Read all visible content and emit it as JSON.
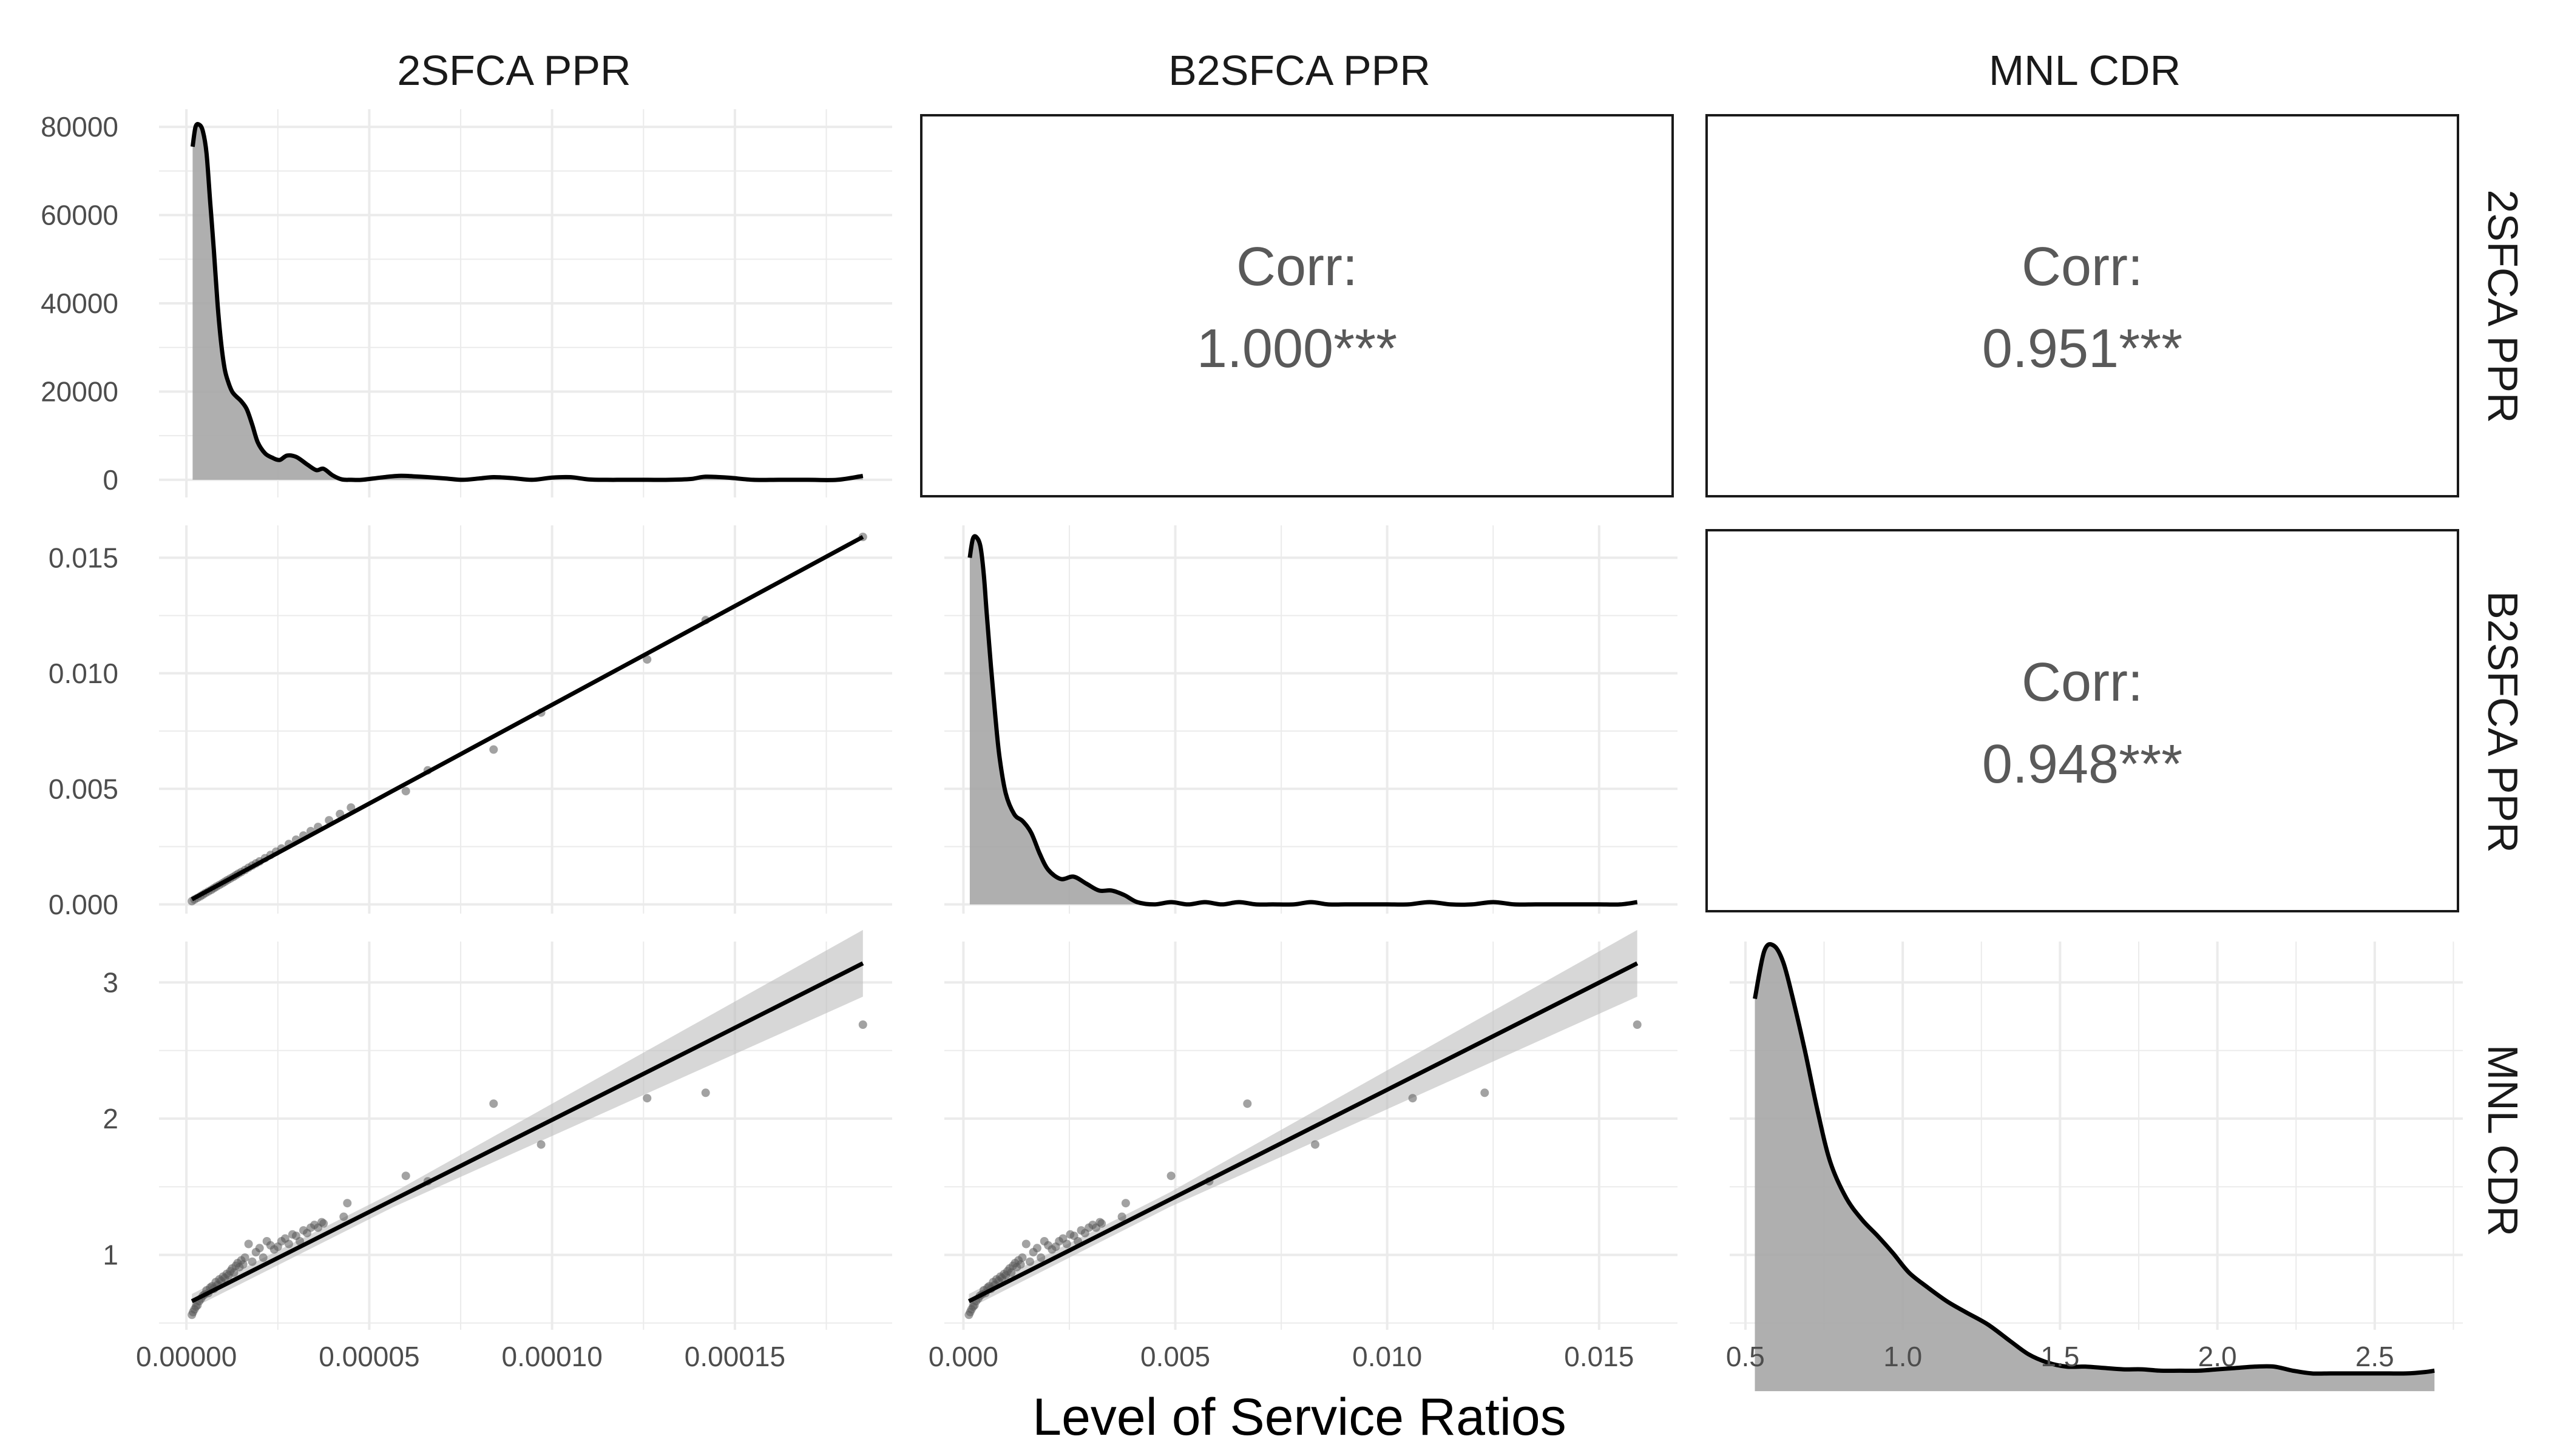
{
  "chart_data": {
    "type": "scatter-matrix",
    "title": "",
    "xlabel": "Level of Service Ratios",
    "variables": [
      "2SFCA PPR",
      "B2SFCA PPR",
      "MNL CDR"
    ],
    "axes": [
      {
        "name": "2SFCA PPR",
        "range": [
          -7.5e-06,
          0.000193
        ],
        "ticks": [
          0,
          5e-05,
          0.0001,
          0.00015
        ],
        "tick_labels": [
          "0.00000",
          "0.00005",
          "0.00010",
          "0.00015"
        ]
      },
      {
        "name": "B2SFCA PPR",
        "range": [
          -0.00045,
          0.01685
        ],
        "ticks": [
          0,
          0.005,
          0.01,
          0.015
        ],
        "tick_labels": [
          "0.000",
          "0.005",
          "0.010",
          "0.015"
        ]
      },
      {
        "name": "MNL CDR",
        "range": [
          0.45,
          2.78
        ],
        "ticks": [
          0.5,
          1.0,
          1.5,
          2.0,
          2.5
        ],
        "tick_labels": [
          "0.5",
          "1.0",
          "1.5",
          "2.0",
          "2.5"
        ]
      }
    ],
    "density_axis": {
      "range": [
        -4000,
        84000
      ],
      "ticks": [
        0,
        20000,
        40000,
        60000,
        80000
      ],
      "tick_labels": [
        "0",
        "20000",
        "40000",
        "60000",
        "80000"
      ]
    },
    "row_y_axes": [
      {
        "name": "B2SFCA PPR",
        "range": [
          -0.0004,
          0.0164
        ],
        "ticks": [
          0,
          0.005,
          0.01,
          0.015
        ],
        "tick_labels": [
          "0.000",
          "0.005",
          "0.010",
          "0.015"
        ]
      },
      {
        "name": "MNL CDR",
        "range": [
          0.45,
          3.3
        ],
        "ticks": [
          1,
          2,
          3
        ],
        "tick_labels": [
          "1",
          "2",
          "3"
        ]
      }
    ],
    "correlations": [
      {
        "row": "2SFCA PPR",
        "col": "B2SFCA PPR",
        "label": "Corr:",
        "value": "1.000***"
      },
      {
        "row": "2SFCA PPR",
        "col": "MNL CDR",
        "label": "Corr:",
        "value": "0.951***"
      },
      {
        "row": "B2SFCA PPR",
        "col": "MNL CDR",
        "label": "Corr:",
        "value": "0.948***"
      }
    ],
    "densities": [
      {
        "variable": "2SFCA PPR",
        "x": [
          1.7e-06,
          2.5e-06,
          3.5e-06,
          4.5e-06,
          5.5e-06,
          6.5e-06,
          7.5e-06,
          8.5e-06,
          9.5e-06,
          1.05e-05,
          1.15e-05,
          1.25e-05,
          1.35e-05,
          1.5e-05,
          1.65e-05,
          1.8e-05,
          1.95e-05,
          2.15e-05,
          2.35e-05,
          2.55e-05,
          2.75e-05,
          3e-05,
          3.3e-05,
          3.55e-05,
          3.75e-05,
          4e-05,
          4.25e-05,
          4.5e-05,
          4.8e-05,
          5.3e-05,
          5.8e-05,
          6.2e-05,
          6.6e-05,
          7.1e-05,
          7.55e-05,
          8e-05,
          8.4e-05,
          8.9e-05,
          9.45e-05,
          0.0001,
          0.000105,
          0.00011,
          0.000115,
          0.00012,
          0.000126,
          0.000132,
          0.000138,
          0.000142,
          0.000148,
          0.000155,
          0.000162,
          0.00017,
          0.000178,
          0.000185
        ],
        "y": [
          75500,
          80000,
          80500,
          79000,
          74000,
          63000,
          52000,
          40000,
          31000,
          25000,
          22000,
          20000,
          19000,
          17800,
          16000,
          12500,
          8500,
          6000,
          5000,
          4500,
          5500,
          5200,
          3500,
          2200,
          2500,
          1000,
          100,
          0,
          0,
          500,
          900,
          800,
          600,
          300,
          0,
          300,
          600,
          400,
          0,
          500,
          600,
          100,
          0,
          0,
          0,
          0,
          200,
          700,
          500,
          0,
          0,
          0,
          0,
          900
        ]
      },
      {
        "variable": "B2SFCA PPR",
        "x": [
          0.00015,
          0.00022,
          0.0003,
          0.0004,
          0.00048,
          0.00055,
          0.00065,
          0.00075,
          0.00085,
          0.001,
          0.0012,
          0.0014,
          0.0016,
          0.0018,
          0.002,
          0.0023,
          0.0026,
          0.0029,
          0.0032,
          0.0035,
          0.0038,
          0.0041,
          0.0045,
          0.0049,
          0.0053,
          0.0057,
          0.0061,
          0.0065,
          0.0069,
          0.0073,
          0.0078,
          0.0082,
          0.0086,
          0.009,
          0.0095,
          0.01,
          0.0105,
          0.011,
          0.0115,
          0.012,
          0.0125,
          0.013,
          0.0135,
          0.014,
          0.0145,
          0.015,
          0.0155,
          0.0159
        ],
        "y": [
          0.015,
          0.0158,
          0.0159,
          0.0155,
          0.0143,
          0.0126,
          0.0103,
          0.0082,
          0.0064,
          0.0048,
          0.0039,
          0.0036,
          0.0031,
          0.0022,
          0.0015,
          0.0011,
          0.0012,
          0.0009,
          0.0006,
          0.0006,
          0.0004,
          0.0001,
          0.0,
          0.0001,
          0.0,
          0.0001,
          0.0,
          0.0001,
          0.0,
          0.0,
          0.0,
          0.0001,
          0.0,
          0.0,
          0.0,
          0.0,
          0.0,
          0.0001,
          0.0,
          0.0,
          0.0001,
          0.0,
          0.0,
          0.0,
          0.0,
          0.0,
          0.0,
          0.0001
        ]
      },
      {
        "variable": "MNL CDR",
        "x": [
          0.53,
          0.56,
          0.59,
          0.62,
          0.65,
          0.69,
          0.73,
          0.77,
          0.82,
          0.87,
          0.92,
          0.97,
          1.02,
          1.08,
          1.14,
          1.2,
          1.27,
          1.34,
          1.4,
          1.46,
          1.52,
          1.58,
          1.64,
          1.7,
          1.76,
          1.82,
          1.88,
          1.94,
          2.0,
          2.06,
          2.12,
          2.18,
          2.24,
          2.3,
          2.36,
          2.42,
          2.48,
          2.54,
          2.6,
          2.66,
          2.69
        ],
        "y": [
          2.88,
          3.23,
          3.27,
          3.15,
          2.89,
          2.49,
          2.05,
          1.68,
          1.42,
          1.26,
          1.14,
          1.01,
          0.87,
          0.76,
          0.66,
          0.58,
          0.49,
          0.37,
          0.27,
          0.21,
          0.18,
          0.18,
          0.17,
          0.16,
          0.16,
          0.15,
          0.15,
          0.15,
          0.16,
          0.17,
          0.18,
          0.18,
          0.15,
          0.13,
          0.13,
          0.13,
          0.13,
          0.13,
          0.13,
          0.14,
          0.15
        ]
      }
    ],
    "scatters": [
      {
        "x_var": "2SFCA PPR",
        "y_var": "B2SFCA PPR",
        "x": [
          1.5e-06,
          2.2e-06,
          3e-06,
          3.8e-06,
          4.5e-06,
          5.2e-06,
          6e-06,
          6.8e-06,
          7.5e-06,
          8.2e-06,
          9e-06,
          9.8e-06,
          1.05e-05,
          1.12e-05,
          1.2e-05,
          1.28e-05,
          1.35e-05,
          1.42e-05,
          1.5e-05,
          1.6e-05,
          1.7e-05,
          1.8e-05,
          1.9e-05,
          2e-05,
          2.15e-05,
          2.3e-05,
          2.45e-05,
          2.6e-05,
          2.8e-05,
          3e-05,
          3.2e-05,
          3.4e-05,
          3.6e-05,
          3.9e-05,
          4.2e-05,
          4.5e-05,
          6e-05,
          6.6e-05,
          8.4e-05,
          9.7e-05,
          0.000126,
          0.000142,
          0.000185
        ],
        "y": [
          0.00014,
          0.00021,
          0.00028,
          0.00035,
          0.00042,
          0.00049,
          0.00056,
          0.00063,
          0.0007,
          0.00077,
          0.00084,
          0.00091,
          0.00098,
          0.00105,
          0.00112,
          0.00119,
          0.00126,
          0.00133,
          0.0014,
          0.00149,
          0.00159,
          0.00168,
          0.00177,
          0.00186,
          0.002,
          0.00214,
          0.00228,
          0.00242,
          0.00261,
          0.0028,
          0.00298,
          0.00317,
          0.00335,
          0.00364,
          0.00391,
          0.00419,
          0.0049,
          0.0058,
          0.0067,
          0.0083,
          0.0106,
          0.0123,
          0.0159
        ],
        "fit": {
          "x": [
            1.5e-06,
            0.000185
          ],
          "y": [
            0.00022,
            0.0159
          ]
        }
      },
      {
        "x_var": "2SFCA PPR",
        "y_var": "MNL CDR",
        "x": [
          1.5e-06,
          1.8e-06,
          2.2e-06,
          2.6e-06,
          3e-06,
          3.5e-06,
          4e-06,
          4.5e-06,
          5e-06,
          5.5e-06,
          6e-06,
          6.5e-06,
          7e-06,
          7.5e-06,
          8e-06,
          8.5e-06,
          9e-06,
          9.5e-06,
          1e-05,
          1.05e-05,
          1.1e-05,
          1.15e-05,
          1.2e-05,
          1.25e-05,
          1.3e-05,
          1.35e-05,
          1.4e-05,
          1.45e-05,
          1.5e-05,
          1.55e-05,
          1.6e-05,
          1.7e-05,
          1.8e-05,
          1.9e-05,
          2e-05,
          2.1e-05,
          2.2e-05,
          2.3e-05,
          2.4e-05,
          2.5e-05,
          2.6e-05,
          2.7e-05,
          2.8e-05,
          2.9e-05,
          3e-05,
          3.1e-05,
          3.2e-05,
          3.3e-05,
          3.4e-05,
          3.5e-05,
          3.6e-05,
          3.7e-05,
          3.75e-05,
          4.3e-05,
          4.4e-05,
          6e-05,
          6.6e-05,
          8.4e-05,
          9.7e-05,
          0.000126,
          0.000142,
          0.000185
        ],
        "y": [
          0.56,
          0.58,
          0.6,
          0.62,
          0.63,
          0.66,
          0.68,
          0.7,
          0.71,
          0.74,
          0.72,
          0.76,
          0.77,
          0.75,
          0.8,
          0.78,
          0.82,
          0.81,
          0.84,
          0.83,
          0.86,
          0.85,
          0.88,
          0.9,
          0.87,
          0.92,
          0.94,
          0.91,
          0.96,
          0.93,
          0.98,
          1.08,
          0.95,
          1.02,
          1.05,
          0.98,
          1.1,
          1.07,
          1.04,
          1.06,
          1.1,
          1.12,
          1.08,
          1.15,
          1.14,
          1.1,
          1.18,
          1.16,
          1.2,
          1.22,
          1.2,
          1.24,
          1.23,
          1.28,
          1.38,
          1.58,
          1.54,
          2.11,
          1.81,
          2.15,
          2.19,
          2.69
        ],
        "fit": {
          "x": [
            1.5e-06,
            0.000185
          ],
          "y": [
            0.66,
            3.14
          ]
        }
      },
      {
        "x_var": "B2SFCA PPR",
        "y_var": "MNL CDR",
        "x": [
          0.00013,
          0.00016,
          0.00019,
          0.00023,
          0.00026,
          0.0003,
          0.00035,
          0.00039,
          0.00044,
          0.00048,
          0.00052,
          0.00057,
          0.00061,
          0.00065,
          0.0007,
          0.00074,
          0.00078,
          0.00083,
          0.00087,
          0.00091,
          0.00096,
          0.001,
          0.00104,
          0.00109,
          0.00113,
          0.00117,
          0.00122,
          0.00126,
          0.0013,
          0.00135,
          0.00139,
          0.00148,
          0.00157,
          0.00165,
          0.00174,
          0.00183,
          0.00191,
          0.002,
          0.00209,
          0.00218,
          0.00226,
          0.00235,
          0.00244,
          0.00252,
          0.00261,
          0.0027,
          0.00278,
          0.00287,
          0.00296,
          0.00305,
          0.00313,
          0.00322,
          0.00326,
          0.00374,
          0.00383,
          0.0049,
          0.0058,
          0.0067,
          0.0083,
          0.0106,
          0.0123,
          0.0159
        ],
        "y": [
          0.56,
          0.58,
          0.6,
          0.62,
          0.63,
          0.66,
          0.68,
          0.7,
          0.71,
          0.74,
          0.72,
          0.76,
          0.77,
          0.75,
          0.8,
          0.78,
          0.82,
          0.81,
          0.84,
          0.83,
          0.86,
          0.85,
          0.88,
          0.9,
          0.87,
          0.92,
          0.94,
          0.91,
          0.96,
          0.93,
          0.98,
          1.08,
          0.95,
          1.02,
          1.05,
          0.98,
          1.1,
          1.07,
          1.04,
          1.06,
          1.1,
          1.12,
          1.08,
          1.15,
          1.14,
          1.1,
          1.18,
          1.16,
          1.2,
          1.22,
          1.2,
          1.24,
          1.23,
          1.28,
          1.38,
          1.58,
          1.54,
          2.11,
          1.81,
          2.15,
          2.19,
          2.69
        ],
        "fit": {
          "x": [
            0.00013,
            0.0159
          ],
          "y": [
            0.66,
            3.14
          ]
        }
      }
    ],
    "grid": true,
    "legend": "none"
  }
}
